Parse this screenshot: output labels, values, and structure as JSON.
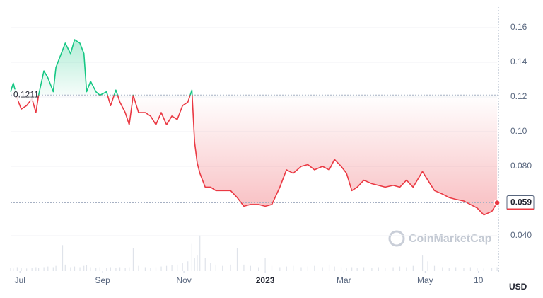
{
  "chart_data": {
    "type": "line",
    "x": [
      -7,
      -5,
      -2,
      1,
      5,
      9,
      12,
      14,
      18,
      21,
      25,
      27,
      32,
      34,
      38,
      41,
      45,
      48,
      50,
      53,
      57,
      60,
      65,
      68,
      72,
      75,
      79,
      82,
      85,
      89,
      94,
      98,
      102,
      106,
      110,
      114,
      118,
      122,
      126,
      129,
      131,
      133,
      135,
      139,
      143,
      147,
      152,
      158,
      163,
      168,
      173,
      179,
      184,
      189,
      195,
      200,
      205,
      211,
      216,
      221,
      227,
      232,
      236,
      241,
      245,
      249,
      253,
      258,
      264,
      269,
      274,
      280,
      285,
      290,
      295,
      302,
      306,
      311,
      317,
      322,
      327,
      333,
      338,
      343,
      348,
      354,
      358
    ],
    "values": [
      0.123,
      0.128,
      0.119,
      0.113,
      0.115,
      0.119,
      0.111,
      0.121,
      0.135,
      0.131,
      0.123,
      0.137,
      0.147,
      0.151,
      0.145,
      0.153,
      0.151,
      0.145,
      0.123,
      0.129,
      0.123,
      0.121,
      0.123,
      0.115,
      0.124,
      0.117,
      0.111,
      0.104,
      0.121,
      0.111,
      0.111,
      0.109,
      0.104,
      0.111,
      0.104,
      0.109,
      0.107,
      0.115,
      0.117,
      0.124,
      0.094,
      0.082,
      0.076,
      0.068,
      0.068,
      0.066,
      0.066,
      0.066,
      0.062,
      0.057,
      0.058,
      0.058,
      0.057,
      0.058,
      0.068,
      0.078,
      0.076,
      0.08,
      0.081,
      0.078,
      0.08,
      0.078,
      0.084,
      0.08,
      0.076,
      0.066,
      0.068,
      0.072,
      0.07,
      0.069,
      0.068,
      0.069,
      0.068,
      0.072,
      0.068,
      0.077,
      0.072,
      0.066,
      0.064,
      0.062,
      0.061,
      0.06,
      0.058,
      0.056,
      0.052,
      0.054,
      0.059
    ],
    "volume": [
      5,
      4,
      6,
      5,
      4,
      5,
      6,
      5,
      6,
      7,
      6,
      8,
      40,
      10,
      6,
      7,
      6,
      8,
      9,
      6,
      5,
      6,
      5,
      6,
      5,
      6,
      5,
      6,
      35,
      8,
      6,
      5,
      6,
      7,
      8,
      9,
      10,
      12,
      15,
      42,
      20,
      25,
      55,
      20,
      12,
      10,
      8,
      10,
      35,
      10,
      8,
      6,
      20,
      8,
      6,
      7,
      8,
      6,
      7,
      8,
      6,
      10,
      7,
      6,
      5,
      6,
      5,
      6,
      5,
      6,
      5,
      6,
      7,
      6,
      8,
      25,
      15,
      8,
      6,
      5,
      6,
      5,
      6,
      5,
      4,
      5,
      6
    ],
    "volume_lim": [
      0,
      60
    ],
    "colors": {
      "up": "#16c784",
      "down": "#ea3943"
    },
    "baseline": 0.1211,
    "current_price": 0.059,
    "xlim": [
      -7,
      359
    ],
    "ylim": [
      0.0196,
      0.171
    ],
    "yticks": [
      0.16,
      0.14,
      0.12,
      {
        "value": 0.1,
        "label": "0.10"
      },
      {
        "value": 0.08,
        "label": "0.080"
      },
      {
        "value": 0.04,
        "label": "0.040"
      }
    ],
    "xticks": [
      {
        "value": 0,
        "label": "Jul"
      },
      {
        "value": 62,
        "label": "Sep"
      },
      {
        "value": 123,
        "label": "Nov"
      },
      {
        "value": 184,
        "label": "2023"
      },
      {
        "value": 243,
        "label": "Mar"
      },
      {
        "value": 304,
        "label": "May"
      },
      {
        "value": 344,
        "label": "10"
      }
    ],
    "y_unit": "USD",
    "watermark": "CoinMarketCap",
    "grid": true
  }
}
